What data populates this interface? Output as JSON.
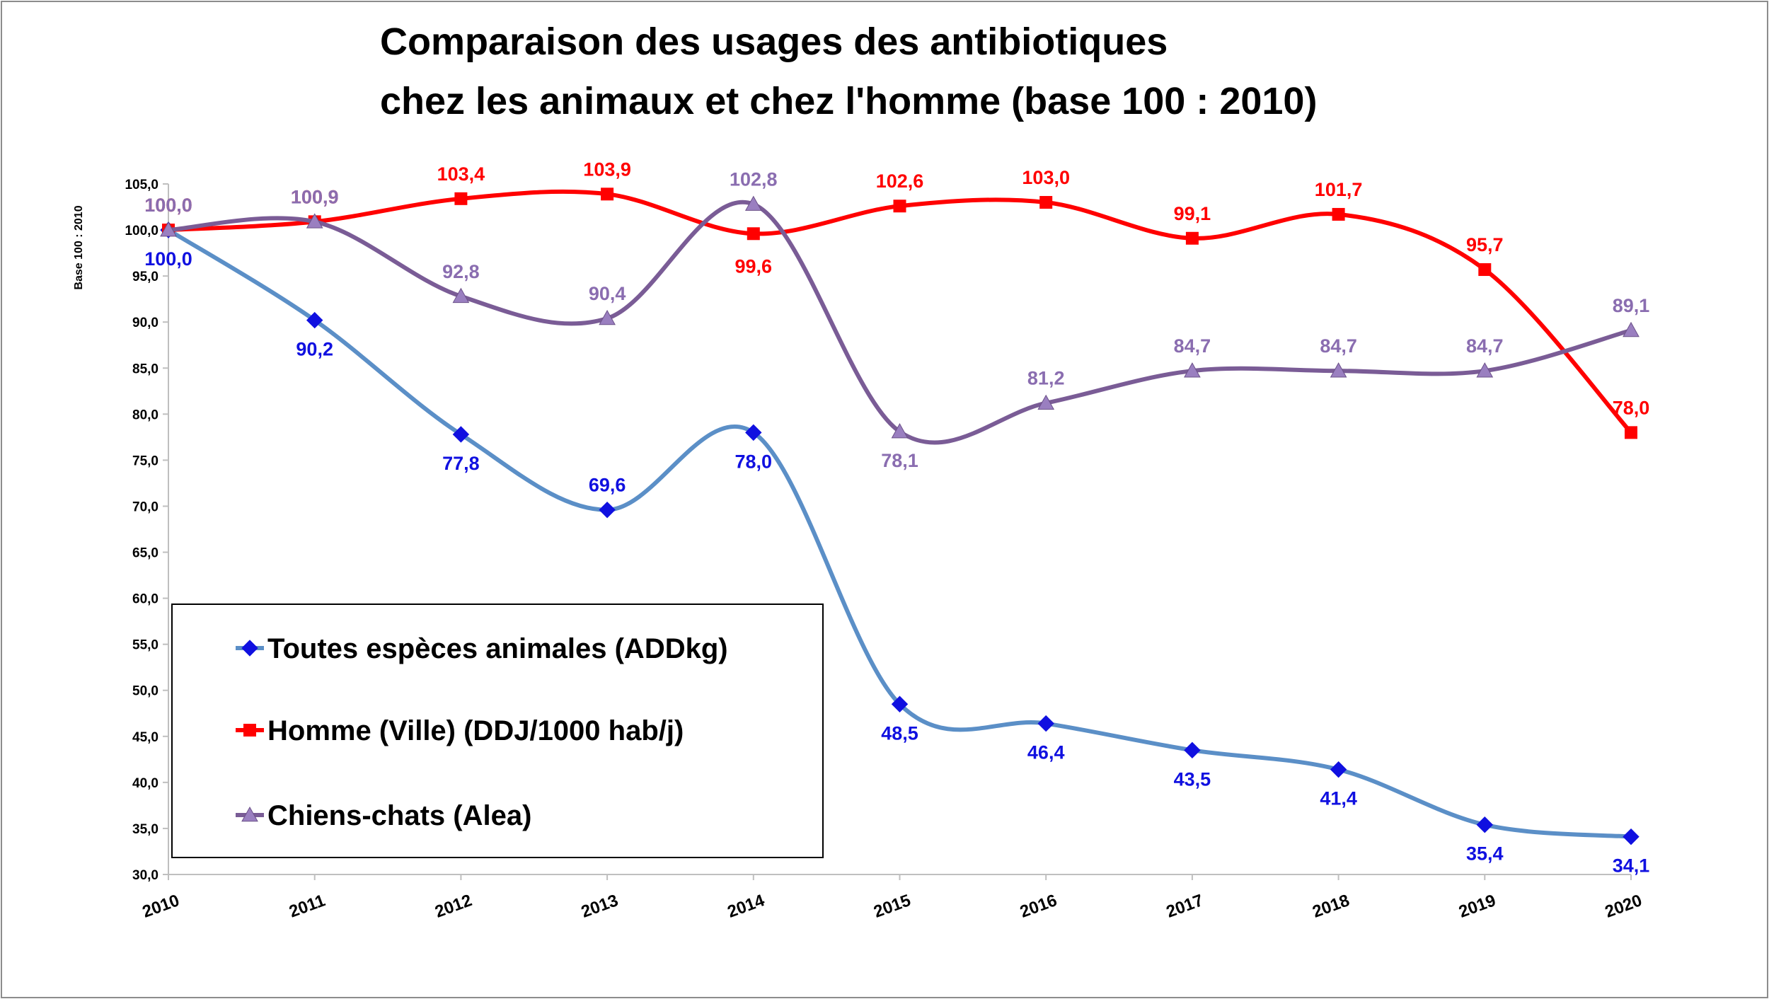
{
  "chart_data": {
    "type": "line",
    "title_lines": [
      "Comparaison des usages des antibiotiques",
      "chez les animaux et chez l'homme (base 100 : 2010)"
    ],
    "xlabel": "",
    "ylabel": "Base 100 : 2010",
    "categories": [
      "2010",
      "2011",
      "2012",
      "2013",
      "2014",
      "2015",
      "2016",
      "2017",
      "2018",
      "2019",
      "2020"
    ],
    "ylim": [
      30,
      105
    ],
    "ytick_labels": [
      "30,0",
      "35,0",
      "40,0",
      "45,0",
      "50,0",
      "55,0",
      "60,0",
      "65,0",
      "70,0",
      "75,0",
      "80,0",
      "85,0",
      "90,0",
      "95,0",
      "100,0",
      "105,0"
    ],
    "grid": false,
    "legend_position": "bottom-left",
    "series": [
      {
        "name": "Toutes espèces animales (ADDkg)",
        "values": [
          100.0,
          90.2,
          77.8,
          69.6,
          78.0,
          48.5,
          46.4,
          43.5,
          41.4,
          35.4,
          34.1
        ],
        "labels": [
          "100,0",
          "90,2",
          "77,8",
          "69,6",
          "78,0",
          "48,5",
          "46,4",
          "43,5",
          "41,4",
          "35,4",
          "34,1"
        ],
        "line_color": "#5b8fc7",
        "marker_color": "#1010e0",
        "label_color": "#1010e0",
        "marker": "diamond"
      },
      {
        "name": "Homme (Ville) (DDJ/1000 hab/j)",
        "values": [
          100.0,
          100.9,
          103.4,
          103.9,
          99.6,
          102.6,
          103.0,
          99.1,
          101.7,
          95.7,
          78.0
        ],
        "labels": [
          "100,0",
          "100,9",
          "103,4",
          "103,9",
          "99,6",
          "102,6",
          "103,0",
          "99,1",
          "101,7",
          "95,7",
          "78,0"
        ],
        "line_color": "#ff0000",
        "marker_color": "#ff0000",
        "label_color": "#ff0000",
        "marker": "square"
      },
      {
        "name": "Chiens-chats (Alea)",
        "values": [
          100.0,
          100.9,
          92.8,
          90.4,
          102.8,
          78.1,
          81.2,
          84.7,
          84.7,
          84.7,
          89.1
        ],
        "labels": [
          "100,0",
          "100,9",
          "92,8",
          "90,4",
          "102,8",
          "78,1",
          "81,2",
          "84,7",
          "84,7",
          "84,7",
          "89,1"
        ],
        "line_color": "#7a5c96",
        "marker_color": "#9a7fc0",
        "label_color": "#8a6db0",
        "marker": "triangle"
      }
    ]
  }
}
